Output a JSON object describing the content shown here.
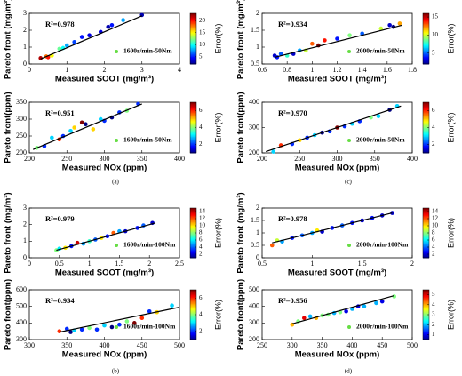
{
  "captions": [
    "(a)",
    "(c)",
    "(b)",
    "(d)"
  ],
  "chart_data": [
    {
      "type": "scatter",
      "xlabel": "Measured SOOT  (mg/m³)",
      "ylabel": "Pareto front  (mg/m³)",
      "annotation": "R²=0.978",
      "legend": "1600r/min-50Nm",
      "legend_color": "#66dd44",
      "colorbar_label": "Error(%)",
      "x": [
        0.3,
        0.45,
        0.5,
        0.6,
        0.8,
        0.9,
        1.0,
        1.2,
        1.4,
        1.6,
        1.9,
        2.1,
        2.2,
        2.5,
        3.0
      ],
      "y": [
        0.35,
        0.45,
        0.4,
        0.5,
        0.9,
        0.95,
        1.1,
        1.3,
        1.6,
        1.7,
        1.9,
        2.2,
        2.3,
        2.6,
        2.9
      ],
      "error": [
        22,
        18,
        20,
        15,
        12,
        10,
        8,
        6,
        5,
        4,
        4,
        3,
        5,
        8,
        3
      ],
      "fit_x": [
        0.3,
        3.0
      ],
      "fit_y": [
        0.3,
        2.85
      ],
      "xlim": [
        0,
        4
      ],
      "xticks": [
        0,
        1,
        2,
        3,
        4
      ],
      "ylim": [
        0,
        3
      ],
      "yticks": [
        0,
        1,
        2,
        3
      ],
      "clim": [
        2,
        23
      ],
      "cticks": [
        5,
        10,
        15,
        20
      ]
    },
    {
      "type": "scatter",
      "xlabel": "Measured NOx  (ppm)",
      "ylabel": "Pareto front(ppm)",
      "annotation": "R²=0.951",
      "legend": "1600r/min-50Nm",
      "legend_color": "#66dd44",
      "colorbar_label": "Error(%)",
      "x": [
        210,
        220,
        230,
        240,
        245,
        255,
        260,
        270,
        275,
        285,
        295,
        300,
        310,
        320,
        330,
        345
      ],
      "y": [
        215,
        220,
        245,
        240,
        250,
        265,
        275,
        290,
        285,
        270,
        300,
        295,
        305,
        320,
        325,
        345
      ],
      "error": [
        4,
        2,
        3,
        6,
        2,
        3,
        5,
        7,
        1,
        5,
        3,
        2,
        1,
        2,
        4,
        2
      ],
      "fit_x": [
        205,
        350
      ],
      "fit_y": [
        210,
        345
      ],
      "xlim": [
        200,
        400
      ],
      "xticks": [
        200,
        250,
        300,
        350,
        400
      ],
      "ylim": [
        200,
        350
      ],
      "yticks": [
        200,
        250,
        300,
        350
      ],
      "clim": [
        1,
        7
      ],
      "cticks": [
        2,
        4,
        6
      ]
    },
    {
      "type": "scatter",
      "xlabel": "Measured SOOT  (mg/m³)",
      "ylabel": "Pareto front  (mg/m³)",
      "annotation": "R²=0.934",
      "legend": "2000r/min-50Nm",
      "legend_color": "#66dd44",
      "colorbar_label": "Error(%)",
      "x": [
        0.7,
        0.72,
        0.75,
        0.8,
        0.85,
        0.9,
        0.95,
        1.0,
        1.05,
        1.1,
        1.2,
        1.3,
        1.4,
        1.55,
        1.62,
        1.65,
        1.7
      ],
      "y": [
        0.75,
        0.7,
        0.8,
        0.75,
        0.8,
        0.9,
        0.9,
        1.1,
        1.05,
        1.2,
        1.25,
        1.35,
        1.4,
        1.55,
        1.65,
        1.6,
        1.7
      ],
      "error": [
        3,
        4,
        5,
        8,
        3,
        6,
        10,
        13,
        16,
        14,
        4,
        9,
        5,
        10,
        3,
        2,
        12
      ],
      "fit_x": [
        0.7,
        1.72
      ],
      "fit_y": [
        0.7,
        1.65
      ],
      "xlim": [
        0.6,
        1.8
      ],
      "xticks": [
        0.6,
        0.8,
        1,
        1.2,
        1.4,
        1.6,
        1.8
      ],
      "ylim": [
        0.5,
        2
      ],
      "yticks": [
        0.5,
        1,
        1.5,
        2
      ],
      "clim": [
        2,
        16
      ],
      "cticks": [
        5,
        10,
        15
      ]
    },
    {
      "type": "scatter",
      "xlabel": "Measured NOx  (ppm)",
      "ylabel": "Pareto front(ppm)",
      "annotation": "R²=0.970",
      "legend": "2000r/min-50Nm",
      "legend_color": "#66dd44",
      "colorbar_label": "Error(%)",
      "x": [
        215,
        225,
        240,
        250,
        260,
        270,
        280,
        290,
        300,
        310,
        320,
        330,
        345,
        355,
        370,
        380
      ],
      "y": [
        205,
        230,
        235,
        250,
        260,
        270,
        280,
        285,
        300,
        305,
        315,
        325,
        340,
        345,
        370,
        385
      ],
      "error": [
        3,
        6,
        2,
        5,
        2,
        3,
        1,
        2,
        7,
        2,
        3,
        2,
        4,
        3,
        1,
        3
      ],
      "fit_x": [
        205,
        385
      ],
      "fit_y": [
        205,
        385
      ],
      "xlim": [
        200,
        400
      ],
      "xticks": [
        200,
        250,
        300,
        350,
        400
      ],
      "ylim": [
        200,
        400
      ],
      "yticks": [
        200,
        300,
        400
      ],
      "clim": [
        1,
        7
      ],
      "cticks": [
        2,
        4,
        6
      ]
    },
    {
      "type": "scatter",
      "xlabel": "Measured SOOT  (mg/m³)",
      "ylabel": "Pareto front  (mg/m³)",
      "annotation": "R²=0.979",
      "legend": "1600r/min-100Nm",
      "legend_color": "#66dd44",
      "colorbar_label": "Error(%)",
      "x": [
        0.45,
        0.5,
        0.6,
        0.7,
        0.8,
        0.9,
        1.0,
        1.1,
        1.2,
        1.3,
        1.4,
        1.5,
        1.6,
        1.8,
        1.9,
        2.05
      ],
      "y": [
        0.45,
        0.55,
        0.6,
        0.7,
        0.9,
        0.85,
        1.0,
        1.1,
        1.2,
        1.3,
        1.5,
        1.6,
        1.6,
        1.8,
        1.95,
        2.1
      ],
      "error": [
        8,
        6,
        10,
        3,
        14,
        5,
        7,
        4,
        10,
        3,
        12,
        5,
        2,
        3,
        4,
        2
      ],
      "fit_x": [
        0.45,
        2.1
      ],
      "fit_y": [
        0.45,
        2.1
      ],
      "xlim": [
        0,
        2.5
      ],
      "xticks": [
        0,
        0.5,
        1,
        1.5,
        2,
        2.5
      ],
      "ylim": [
        0,
        3
      ],
      "yticks": [
        0,
        1,
        2,
        3
      ],
      "clim": [
        1,
        15
      ],
      "cticks": [
        2,
        4,
        6,
        8,
        10,
        12,
        14
      ]
    },
    {
      "type": "scatter",
      "xlabel": "Measured NOx  (ppm)",
      "ylabel": "Pareto front(ppm)",
      "annotation": "R²=0.934",
      "legend": "1600r/min-100Nm",
      "legend_color": "#66dd44",
      "colorbar_label": "Error(%)",
      "x": [
        340,
        350,
        355,
        360,
        370,
        380,
        390,
        400,
        410,
        420,
        430,
        440,
        450,
        460,
        470,
        490
      ],
      "y": [
        350,
        365,
        345,
        355,
        360,
        370,
        360,
        385,
        375,
        390,
        410,
        400,
        430,
        470,
        465,
        505
      ],
      "error": [
        6,
        2,
        1,
        3,
        2,
        4,
        2,
        3,
        1,
        2,
        4,
        7,
        6,
        2,
        5,
        3
      ],
      "fit_x": [
        340,
        500
      ],
      "fit_y": [
        345,
        495
      ],
      "xlim": [
        300,
        500
      ],
      "xticks": [
        300,
        350,
        400,
        450,
        500
      ],
      "ylim": [
        300,
        600
      ],
      "yticks": [
        300,
        400,
        500,
        600
      ],
      "clim": [
        1,
        7
      ],
      "cticks": [
        2,
        4,
        6
      ]
    },
    {
      "type": "scatter",
      "xlabel": "Measured SOOT  (mg/m³)",
      "ylabel": "Pareto front  (mg/m³)",
      "annotation": "R²=0.978",
      "legend": "2000r/min-100Nm",
      "legend_color": "#66dd44",
      "colorbar_label": "Error(%)",
      "x": [
        0.6,
        0.65,
        0.7,
        0.8,
        0.9,
        1.0,
        1.05,
        1.1,
        1.2,
        1.3,
        1.4,
        1.5,
        1.6,
        1.7,
        1.8
      ],
      "y": [
        0.5,
        0.7,
        0.65,
        0.8,
        0.9,
        1.0,
        1.1,
        1.05,
        1.2,
        1.3,
        1.4,
        1.5,
        1.6,
        1.7,
        1.8
      ],
      "error": [
        12,
        9,
        5,
        3,
        4,
        5,
        10,
        2,
        3,
        4,
        3,
        2,
        3,
        2,
        2
      ],
      "fit_x": [
        0.6,
        1.8
      ],
      "fit_y": [
        0.6,
        1.8
      ],
      "xlim": [
        0.5,
        2
      ],
      "xticks": [
        0.5,
        1,
        1.5,
        2
      ],
      "ylim": [
        0,
        2
      ],
      "yticks": [
        0,
        0.5,
        1,
        1.5,
        2
      ],
      "clim": [
        1,
        15
      ],
      "cticks": [
        2,
        4,
        6,
        8,
        10,
        12,
        14
      ]
    },
    {
      "type": "scatter",
      "xlabel": "Measured NOx  (ppm)",
      "ylabel": "Pareto front(ppm)",
      "annotation": "R²=0.956",
      "legend": "2000r/min-100Nm",
      "legend_color": "#66dd44",
      "colorbar_label": "Error(%)",
      "x": [
        300,
        310,
        320,
        330,
        340,
        350,
        360,
        370,
        380,
        390,
        400,
        410,
        420,
        440,
        450,
        470
      ],
      "y": [
        290,
        310,
        330,
        340,
        330,
        345,
        350,
        360,
        365,
        370,
        385,
        400,
        400,
        420,
        430,
        460
      ],
      "error": [
        4,
        3,
        5,
        2,
        4,
        3,
        3,
        2,
        3,
        1,
        2,
        1,
        2,
        2,
        1,
        3
      ],
      "fit_x": [
        300,
        470
      ],
      "fit_y": [
        295,
        465
      ],
      "xlim": [
        250,
        500
      ],
      "xticks": [
        250,
        300,
        350,
        400,
        450,
        500
      ],
      "ylim": [
        200,
        500
      ],
      "yticks": [
        200,
        300,
        400,
        500
      ],
      "clim": [
        0.5,
        5.5
      ],
      "cticks": [
        1,
        2,
        3,
        4,
        5
      ]
    }
  ]
}
